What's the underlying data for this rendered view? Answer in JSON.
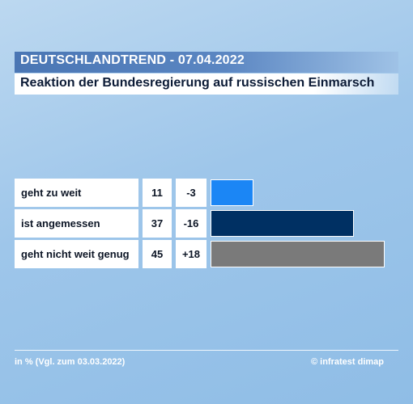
{
  "header": {
    "title": "DEUTSCHLANDTREND - 07.04.2022",
    "subtitle": "Reaktion der Bundesregierung auf russischen Einmarsch"
  },
  "footer": {
    "note": "in % (Vgl. zum 03.03.2022)",
    "source": "© infratest dimap"
  },
  "chart_data": {
    "type": "bar",
    "orientation": "horizontal",
    "title": "Reaktion der Bundesregierung auf russischen Einmarsch",
    "unit": "%",
    "categories": [
      "geht zu weit",
      "ist angemessen",
      "geht nicht weit genug"
    ],
    "values": [
      11,
      37,
      45
    ],
    "changes": [
      "-3",
      "-16",
      "+18"
    ],
    "colors": [
      "#1b86f5",
      "#003063",
      "#7a7a7a"
    ],
    "xlim": [
      0,
      45
    ]
  }
}
